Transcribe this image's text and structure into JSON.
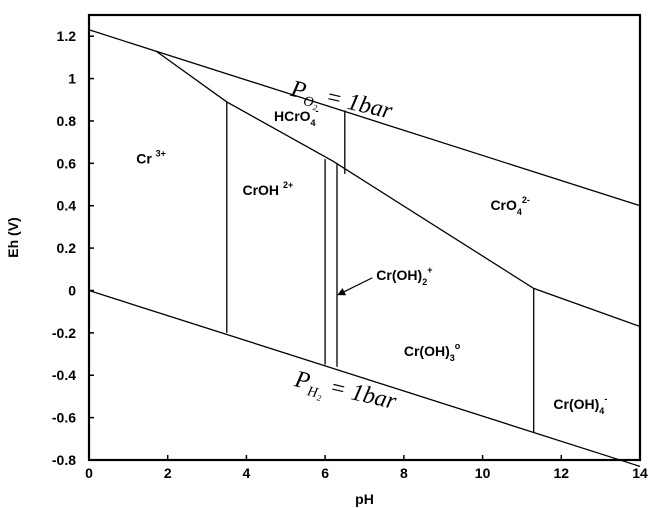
{
  "chart_data": {
    "type": "line",
    "xlabel": "pH",
    "ylabel": "Eh (V)",
    "xlim": [
      0,
      14
    ],
    "ylim": [
      -0.8,
      1.3
    ],
    "x_ticks": [
      0,
      2,
      4,
      6,
      8,
      10,
      12,
      14
    ],
    "y_ticks": [
      -0.8,
      -0.6,
      -0.4,
      -0.2,
      0,
      0.2,
      0.4,
      0.6,
      0.8,
      1,
      1.2
    ],
    "x_tick_labels": [
      "0",
      "2",
      "4",
      "6",
      "8",
      "10",
      "12",
      "14"
    ],
    "y_tick_labels": [
      "-0.8",
      "-0.6",
      "-0.4",
      "-0.2",
      "0",
      "0.2",
      "0.4",
      "0.6",
      "0.8",
      "1",
      "1.2"
    ],
    "grid": false,
    "water_stability_lines": [
      {
        "id": "o2",
        "label": {
          "base": "P",
          "sub": "O₂",
          "rest": " = 1bar"
        },
        "label_pos": [
          5.1,
          0.92
        ],
        "label_angle_deg": 13,
        "points": [
          [
            0,
            1.23
          ],
          [
            14,
            0.4
          ]
        ]
      },
      {
        "id": "h2",
        "label": {
          "base": "P",
          "sub": "H₂",
          "rest": " = 1bar"
        },
        "label_pos": [
          5.2,
          -0.45
        ],
        "label_angle_deg": 13,
        "points": [
          [
            0,
            0.0
          ],
          [
            14,
            -0.83
          ]
        ]
      }
    ],
    "species_boundaries": [
      {
        "points": [
          [
            1.7,
            1.13
          ],
          [
            3.5,
            0.89
          ],
          [
            6.2,
            0.61
          ],
          [
            11.3,
            0.01
          ],
          [
            14,
            -0.17
          ]
        ]
      },
      {
        "points": [
          [
            3.5,
            0.89
          ],
          [
            3.5,
            -0.2
          ]
        ]
      },
      {
        "points": [
          [
            6.0,
            0.62
          ],
          [
            6.0,
            -0.35
          ]
        ]
      },
      {
        "points": [
          [
            6.3,
            0.6
          ],
          [
            6.3,
            -0.36
          ]
        ]
      },
      {
        "points": [
          [
            6.5,
            0.85
          ],
          [
            6.5,
            0.55
          ]
        ]
      },
      {
        "points": [
          [
            11.3,
            0.01
          ],
          [
            11.3,
            -0.67
          ]
        ]
      }
    ],
    "species_labels": [
      {
        "id": "cr3",
        "base": "Cr ",
        "sup": "3+",
        "pos": [
          1.2,
          0.6
        ]
      },
      {
        "id": "hcro4",
        "base": "HCrO",
        "sub": "4",
        "sup": "-",
        "pos": [
          4.7,
          0.8
        ]
      },
      {
        "id": "croh2",
        "base": "CrOH ",
        "sup": "2+",
        "pos": [
          3.9,
          0.45
        ]
      },
      {
        "id": "cro4",
        "base": "CrO",
        "sub": "4",
        "sup": "2-",
        "pos": [
          10.2,
          0.38
        ]
      },
      {
        "id": "croh2plus",
        "base": "Cr(OH)",
        "sub": "2",
        "sup": "+",
        "pos": [
          7.3,
          0.05
        ]
      },
      {
        "id": "croh3",
        "base": "Cr(OH)",
        "sub": "3",
        "sup": "o",
        "pos": [
          8.0,
          -0.31
        ]
      },
      {
        "id": "croh4",
        "base": "Cr(OH)",
        "sub": "4",
        "sup": "-",
        "pos": [
          11.8,
          -0.56
        ]
      }
    ],
    "arrow": {
      "from": [
        7.2,
        0.06
      ],
      "to": [
        6.33,
        -0.02
      ]
    }
  }
}
